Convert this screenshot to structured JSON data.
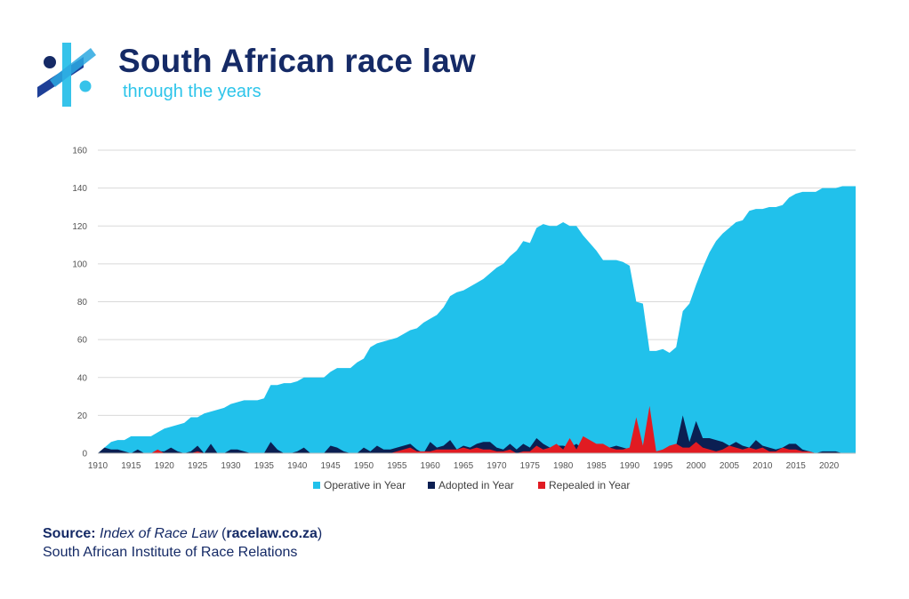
{
  "header": {
    "title": "South African race law",
    "subtitle": "through the years"
  },
  "source": {
    "label": "Source:",
    "work": "Index of Race Law",
    "open_paren": " (",
    "site": "racelaw.co.za",
    "close_paren": ")",
    "organization": "South African Institute of Race Relations"
  },
  "colors": {
    "operative": "#21c1eb",
    "adopted": "#0b1f52",
    "repealed": "#e11b22",
    "title": "#152a66",
    "subtitle": "#2ec5ea"
  },
  "chart_data": {
    "type": "area",
    "title": "",
    "xlabel": "",
    "ylabel": "",
    "xlim": [
      1910,
      2024
    ],
    "ylim": [
      0,
      160
    ],
    "grid": true,
    "legend_position": "bottom",
    "y_ticks": [
      0,
      20,
      40,
      60,
      80,
      100,
      120,
      140,
      160
    ],
    "x_ticks": [
      1910,
      1915,
      1920,
      1925,
      1930,
      1935,
      1940,
      1945,
      1950,
      1955,
      1960,
      1965,
      1970,
      1975,
      1980,
      1985,
      1990,
      1995,
      2000,
      2005,
      2010,
      2015,
      2020
    ],
    "x": [
      1910,
      1911,
      1912,
      1913,
      1914,
      1915,
      1916,
      1917,
      1918,
      1919,
      1920,
      1921,
      1922,
      1923,
      1924,
      1925,
      1926,
      1927,
      1928,
      1929,
      1930,
      1931,
      1932,
      1933,
      1934,
      1935,
      1936,
      1937,
      1938,
      1939,
      1940,
      1941,
      1942,
      1943,
      1944,
      1945,
      1946,
      1947,
      1948,
      1949,
      1950,
      1951,
      1952,
      1953,
      1954,
      1955,
      1956,
      1957,
      1958,
      1959,
      1960,
      1961,
      1962,
      1963,
      1964,
      1965,
      1966,
      1967,
      1968,
      1969,
      1970,
      1971,
      1972,
      1973,
      1974,
      1975,
      1976,
      1977,
      1978,
      1979,
      1980,
      1981,
      1982,
      1983,
      1984,
      1985,
      1986,
      1987,
      1988,
      1989,
      1990,
      1991,
      1992,
      1993,
      1994,
      1995,
      1996,
      1997,
      1998,
      1999,
      2000,
      2001,
      2002,
      2003,
      2004,
      2005,
      2006,
      2007,
      2008,
      2009,
      2010,
      2011,
      2012,
      2013,
      2014,
      2015,
      2016,
      2017,
      2018,
      2019,
      2020,
      2021,
      2022,
      2023,
      2024
    ],
    "series": [
      {
        "name": "Operative in Year",
        "color": "#21c1eb",
        "values": [
          0,
          3,
          6,
          7,
          7,
          9,
          9,
          9,
          9,
          11,
          13,
          14,
          15,
          16,
          19,
          19,
          21,
          22,
          23,
          24,
          26,
          27,
          28,
          28,
          28,
          29,
          36,
          36,
          37,
          37,
          38,
          40,
          40,
          40,
          40,
          43,
          45,
          45,
          45,
          48,
          50,
          56,
          58,
          59,
          60,
          61,
          63,
          65,
          66,
          69,
          71,
          73,
          77,
          83,
          85,
          86,
          88,
          90,
          92,
          95,
          98,
          100,
          104,
          107,
          112,
          111,
          119,
          121,
          120,
          120,
          122,
          120,
          120,
          115,
          111,
          107,
          102,
          102,
          102,
          101,
          99,
          80,
          79,
          54,
          54,
          55,
          53,
          56,
          75,
          79,
          89,
          98,
          106,
          112,
          116,
          119,
          122,
          123,
          128,
          129,
          129,
          130,
          130,
          131,
          135,
          137,
          138,
          138,
          138,
          140,
          140,
          140,
          141,
          141,
          141
        ]
      },
      {
        "name": "Adopted in Year",
        "color": "#0b1f52",
        "values": [
          0,
          3,
          2,
          2,
          1,
          0,
          2,
          0,
          0,
          1,
          1,
          3,
          1,
          0,
          1,
          4,
          0,
          5,
          0,
          0,
          2,
          2,
          1,
          0,
          0,
          0,
          6,
          2,
          0,
          0,
          1,
          3,
          0,
          0,
          0,
          4,
          3,
          1,
          0,
          0,
          3,
          1,
          4,
          2,
          2,
          3,
          4,
          5,
          2,
          0,
          6,
          3,
          4,
          7,
          2,
          4,
          3,
          5,
          6,
          6,
          3,
          2,
          5,
          2,
          5,
          3,
          8,
          5,
          3,
          4,
          4,
          3,
          5,
          2,
          2,
          3,
          2,
          3,
          4,
          3,
          2,
          0,
          3,
          0,
          1,
          1,
          4,
          4,
          20,
          6,
          17,
          8,
          8,
          7,
          6,
          4,
          6,
          4,
          3,
          7,
          4,
          3,
          2,
          3,
          5,
          5,
          2,
          1,
          0,
          1,
          1,
          1,
          0,
          0,
          0
        ]
      },
      {
        "name": "Repealed in Year",
        "color": "#e11b22",
        "values": [
          0,
          0,
          0,
          0,
          0,
          0,
          0,
          0,
          0,
          2,
          0,
          0,
          0,
          0,
          0,
          1,
          0,
          0,
          0,
          0,
          0,
          0,
          0,
          0,
          0,
          0,
          0,
          0,
          0,
          0,
          0,
          0,
          0,
          0,
          0,
          0,
          0,
          0,
          0,
          0,
          0,
          0,
          0,
          0,
          0,
          1,
          2,
          3,
          1,
          1,
          1,
          2,
          2,
          2,
          2,
          3,
          2,
          3,
          2,
          2,
          1,
          1,
          2,
          0,
          1,
          1,
          4,
          2,
          3,
          5,
          2,
          8,
          2,
          9,
          7,
          5,
          5,
          3,
          2,
          2,
          3,
          19,
          4,
          25,
          1,
          2,
          4,
          5,
          3,
          3,
          6,
          3,
          2,
          1,
          2,
          4,
          3,
          2,
          3,
          2,
          3,
          1,
          1,
          3,
          2,
          2,
          1,
          1,
          0,
          0,
          0,
          0,
          0,
          0,
          0
        ]
      }
    ]
  }
}
